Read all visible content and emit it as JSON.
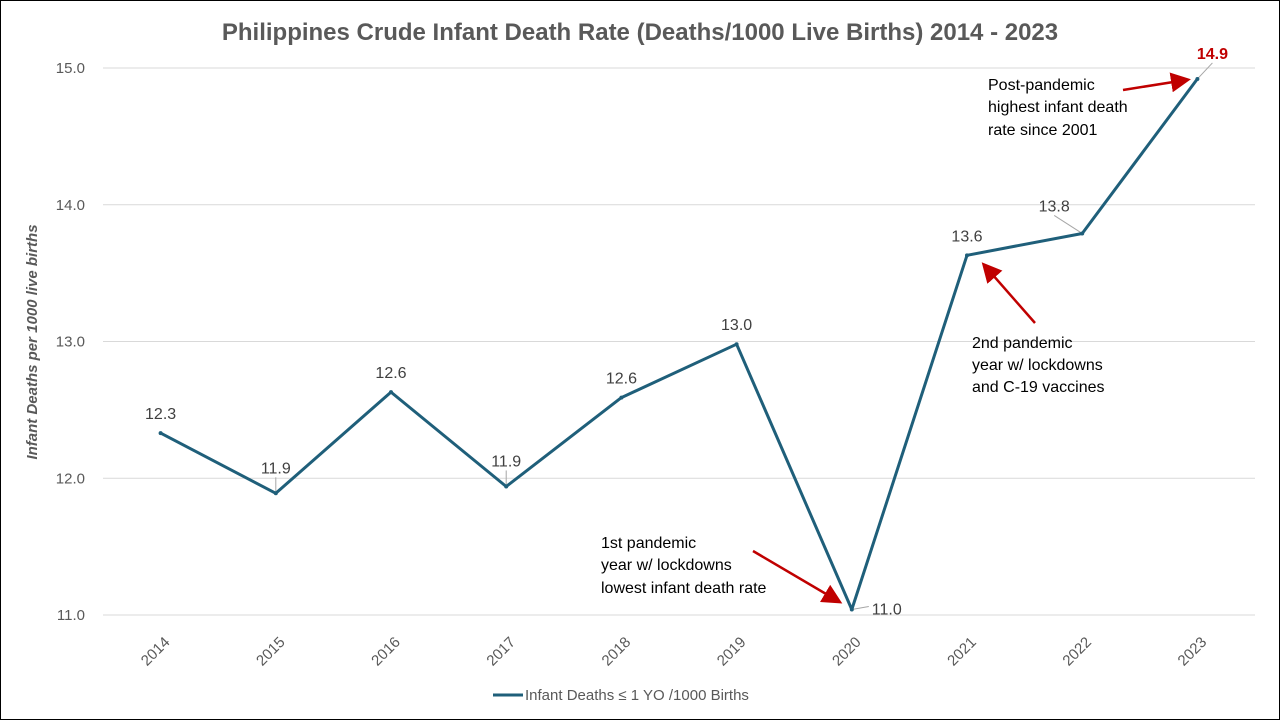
{
  "chart_data": {
    "type": "line",
    "title": "Philippines Crude Infant Death Rate (Deaths/1000 Live Births) 2014 - 2023",
    "ylabel": "Infant Deaths per 1000 live births",
    "xlabel": "",
    "ylim": [
      11.0,
      15.0
    ],
    "yticks": [
      "11.0",
      "12.0",
      "13.0",
      "14.0",
      "15.0"
    ],
    "grid": true,
    "legend_position": "bottom",
    "categories": [
      "2014",
      "2015",
      "2016",
      "2017",
      "2018",
      "2019",
      "2020",
      "2021",
      "2022",
      "2023"
    ],
    "series": [
      {
        "name": "Infant Deaths ≤ 1 YO /1000 Births",
        "color": "#1f5f7a",
        "values": [
          12.33,
          11.89,
          12.63,
          11.94,
          12.59,
          12.98,
          11.04,
          13.63,
          13.79,
          14.92
        ],
        "labels": [
          "12.3",
          "11.9",
          "12.6",
          "11.9",
          "12.6",
          "13.0",
          "11.0",
          "13.6",
          "13.8",
          "14.9"
        ]
      }
    ],
    "highlight_color": "#c00000",
    "annotations": [
      {
        "lines": [
          "Post-pandemic",
          "highest infant death",
          "rate since 2001"
        ],
        "target": "2023"
      },
      {
        "lines": [
          "2nd pandemic",
          "year w/ lockdowns",
          "and C-19 vaccines"
        ],
        "target": "2021"
      },
      {
        "lines": [
          "1st pandemic",
          "year w/ lockdowns",
          "lowest infant death rate"
        ],
        "target": "2020"
      }
    ]
  }
}
